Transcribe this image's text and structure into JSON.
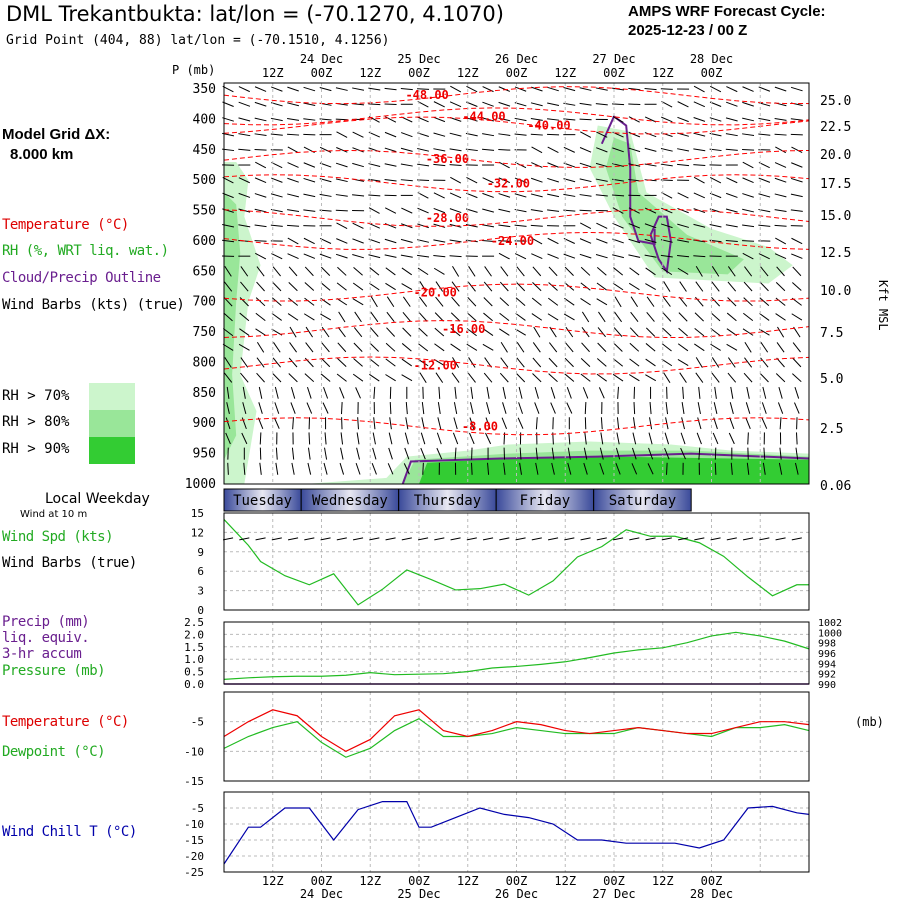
{
  "header": {
    "title": "DML Trekantbukta:  lat/lon = (-70.1270, 4.1070)",
    "subtitle": "Grid Point (404, 88) lat/lon = (-70.1510, 4.1256)",
    "cycle_label": "AMPS WRF Forecast Cycle:",
    "cycle_value": "2025-12-23 / 00  Z"
  },
  "model_grid": {
    "label": "Model Grid ΔX:",
    "value": "8.000 km"
  },
  "legend": {
    "temperature": "Temperature (°C)",
    "rh": "RH (%, WRT liq. wat.)",
    "cloud": "Cloud/Precip Outline",
    "wind": "Wind Barbs (kts) (true)",
    "rh70": "RH > 70%",
    "rh80": "RH > 80%",
    "rh90": "RH > 90%"
  },
  "colors": {
    "temp": "#ff0000",
    "rh70": "#ccf5cc",
    "rh80": "#99e699",
    "rh90": "#33cc33",
    "cloud": "#6a1f8f",
    "green": "#22bb22",
    "blue": "#0000aa",
    "grid": "#bbbbbb"
  },
  "time_axis": {
    "top_ticks": [
      "12Z",
      "00Z",
      "12Z",
      "00Z",
      "12Z",
      "00Z",
      "12Z",
      "00Z",
      "12Z",
      "00Z"
    ],
    "dates": [
      "24 Dec",
      "25 Dec",
      "26 Dec",
      "27 Dec",
      "28 Dec"
    ],
    "bottom_ticks": [
      "12Z",
      "00Z",
      "12Z",
      "00Z",
      "12Z",
      "00Z",
      "12Z",
      "00Z",
      "12Z",
      "00Z"
    ],
    "weekdays": [
      "Tuesday",
      "Wednesday",
      "Thursday",
      "Friday",
      "Saturday"
    ]
  },
  "local_weekday_label": "Local Weekday",
  "wind_at_10m_label": "Wind at 10 m",
  "chart_data": [
    {
      "type": "heatmap",
      "name": "vertical cross-section",
      "ylabel": "P (mb)",
      "pressure_levels": [
        "350",
        "400",
        "450",
        "500",
        "550",
        "600",
        "650",
        "700",
        "750",
        "800",
        "850",
        "900",
        "950",
        "1000"
      ],
      "right_axis_label": "Kft MSL",
      "height_kft": [
        "25.0",
        "22.5",
        "20.0",
        "17.5",
        "15.0",
        "12.5",
        "10.0",
        "7.5",
        "5.0",
        "2.5",
        "0.06"
      ],
      "isotherm_labels": [
        "-48.00",
        "-44.00",
        "-40.00",
        "-36.00",
        "-32.00",
        "-28.00",
        "-24.00",
        "-20.00",
        "-16.00",
        "-12.00",
        "-8.00"
      ],
      "isotherm_levels_mb": [
        360,
        395,
        410,
        465,
        505,
        562,
        600,
        685,
        745,
        805,
        905
      ]
    },
    {
      "type": "line",
      "name": "10 m wind speed",
      "title": "Wind Spd (kts)",
      "subtitle": "Wind Barbs (true)",
      "yticks": [
        "15",
        "12",
        "9",
        "6",
        "3",
        "0"
      ],
      "ylim": [
        0,
        15
      ],
      "x_hours": [
        0,
        6,
        9,
        15,
        21,
        27,
        33,
        39,
        45,
        51,
        57,
        63,
        69,
        75,
        81,
        87,
        93,
        99,
        105,
        111,
        117,
        123,
        129,
        135,
        141,
        144
      ],
      "values": [
        14,
        10,
        7.5,
        5.3,
        3.9,
        5.6,
        0.8,
        3.2,
        6.2,
        4.7,
        3.1,
        3.3,
        4.0,
        2.3,
        4.5,
        8.2,
        9.8,
        12.4,
        11.4,
        11.4,
        10.4,
        8.3,
        5.1,
        2.2,
        3.9,
        3.9
      ]
    },
    {
      "type": "line",
      "name": "precip and pressure",
      "title": "Precip (mm)",
      "title2": "liq. equiv.",
      "title3": "3-hr accum",
      "title4": "Pressure (mb)",
      "yticks_left": [
        "2.5",
        "2.0",
        "1.5",
        "1.0",
        "0.5",
        "0.0"
      ],
      "yticks_right": [
        "1002",
        "1000",
        "998",
        "996",
        "994",
        "992",
        "990"
      ],
      "right_unit": "(mb)",
      "x_hours": [
        0,
        6,
        12,
        18,
        24,
        30,
        36,
        42,
        48,
        54,
        60,
        66,
        72,
        78,
        84,
        90,
        96,
        102,
        108,
        114,
        120,
        126,
        132,
        138,
        144
      ],
      "pressure_mb": [
        990.9,
        991.2,
        991.4,
        991.5,
        991.5,
        991.7,
        992.2,
        991.8,
        991.9,
        992.0,
        992.4,
        993.1,
        993.4,
        993.8,
        994.3,
        995.1,
        996.0,
        996.6,
        997.0,
        998.0,
        999.3,
        1000.0,
        999.3,
        998.3,
        996.8
      ],
      "precip_mm": [
        0,
        0,
        0,
        0,
        0,
        0,
        0,
        0,
        0,
        0,
        0,
        0,
        0,
        0,
        0,
        0,
        0,
        0,
        0,
        0,
        0,
        0,
        0,
        0,
        0
      ]
    },
    {
      "type": "line",
      "name": "temperature and dewpoint",
      "series": [
        {
          "name": "Temperature (°C)",
          "values": [
            -7.5,
            -5.0,
            -3.0,
            -4.0,
            -7.5,
            -10.0,
            -8.0,
            -4.0,
            -3.0,
            -6.5,
            -7.5,
            -6.5,
            -5.0,
            -5.5,
            -6.5,
            -7.0,
            -6.5,
            -6.0,
            -6.5,
            -7.0,
            -7.0,
            -6.0,
            -5.0,
            -5.0,
            -5.5
          ]
        },
        {
          "name": "Dewpoint (°C)",
          "values": [
            -9.5,
            -7.5,
            -6.0,
            -5.0,
            -8.5,
            -11.0,
            -9.5,
            -6.5,
            -4.5,
            -7.5,
            -7.5,
            -7.0,
            -6.0,
            -6.5,
            -7.0,
            -7.0,
            -7.0,
            -6.0,
            -6.5,
            -7.0,
            -7.5,
            -6.0,
            -6.0,
            -5.5,
            -6.5
          ]
        }
      ],
      "x_hours": [
        0,
        6,
        12,
        18,
        24,
        30,
        36,
        42,
        48,
        54,
        60,
        66,
        72,
        78,
        84,
        90,
        96,
        102,
        108,
        114,
        120,
        126,
        132,
        138,
        144
      ],
      "yticks": [
        "-5",
        "-10",
        "-15"
      ],
      "ylim": [
        -15,
        0
      ]
    },
    {
      "type": "line",
      "name": "wind chill",
      "title": "Wind Chill T (°C)",
      "yticks": [
        "-5",
        "-10",
        "-15",
        "-20",
        "-25"
      ],
      "ylim": [
        -25,
        0
      ],
      "x_hours": [
        0,
        6,
        9,
        15,
        21,
        27,
        33,
        39,
        45,
        48,
        51,
        57,
        63,
        69,
        75,
        81,
        87,
        93,
        99,
        105,
        111,
        117,
        123,
        129,
        135,
        141,
        144
      ],
      "values": [
        -22.5,
        -11,
        -11,
        -5,
        -5,
        -15,
        -5.5,
        -3,
        -3,
        -11,
        -11,
        -8,
        -5,
        -7,
        -8,
        -10,
        -15,
        -15,
        -16,
        -16,
        -16,
        -17.5,
        -15,
        -5,
        -4.5,
        -6.5,
        -7
      ]
    }
  ]
}
